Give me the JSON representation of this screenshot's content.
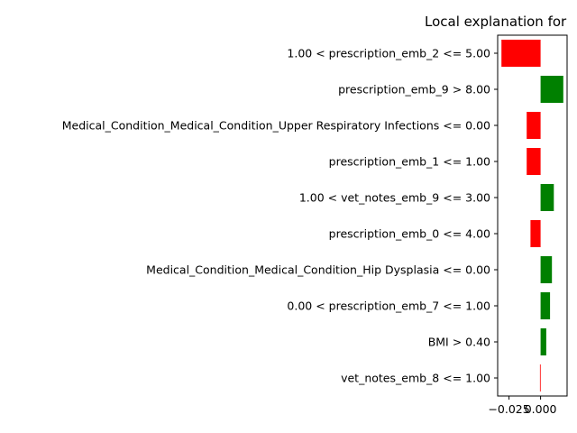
{
  "chart_data": {
    "type": "bar",
    "orientation": "horizontal",
    "title": "Local explanation for",
    "xlabel": "",
    "ylabel": "",
    "categories": [
      "1.00 < prescription_emb_2 <= 5.00",
      "prescription_emb_9 > 8.00",
      "Medical_Condition_Medical_Condition_Upper Respiratory Infections <= 0.00",
      "prescription_emb_1 <= 1.00",
      "1.00 < vet_notes_emb_9 <= 3.00",
      "prescription_emb_0 <= 4.00",
      "Medical_Condition_Medical_Condition_Hip Dysplasia <= 0.00",
      "0.00 < prescription_emb_7 <= 1.00",
      "BMI > 0.40",
      "vet_notes_emb_8 <= 1.00"
    ],
    "values": [
      -0.031,
      0.018,
      -0.011,
      -0.011,
      0.0105,
      -0.008,
      0.009,
      0.0075,
      0.0045,
      -0.0005
    ],
    "xlim": [
      -0.034,
      0.021
    ],
    "xticks": [
      -0.025,
      0.0
    ],
    "xtick_labels": [
      "−0.025",
      "0.000"
    ],
    "colors": {
      "positive": "#008000",
      "negative": "#ff0000"
    },
    "grid": false
  }
}
